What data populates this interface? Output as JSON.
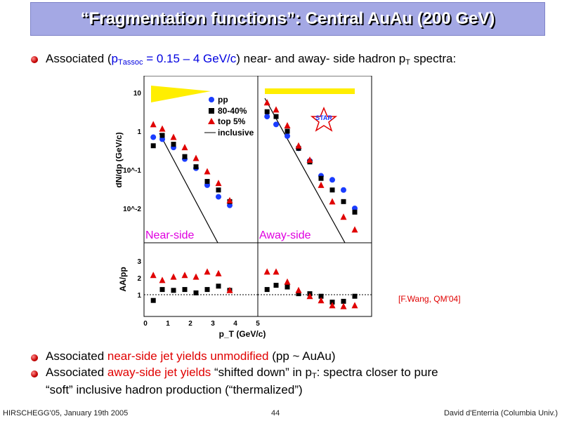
{
  "title": "“Fragmentation functions”: Central AuAu (200 GeV)",
  "bullets": {
    "b1": {
      "a": "Associated (",
      "b": "p",
      "c": "T",
      "d": "assoc",
      "e": " = 0.15 – 4 GeV/c",
      "f": ") near- and away- side hadron p",
      "g": "T",
      "h": " spectra:"
    },
    "b2": {
      "a": "Associated ",
      "b": "near-side jet yields unmodified",
      "c": " (pp ~ AuAu)"
    },
    "b3": {
      "a": "Associated ",
      "b": "away-side jet yields",
      "c": " “shifted down” in p",
      "d": "T",
      "e": ": spectra closer to pure",
      "f": "“soft” inclusive hadron production (“thermalized”)"
    }
  },
  "reference": "[F.Wang, QM'04]",
  "footer": {
    "left": "HIRSCHEGG'05, January 19th 2005",
    "center": "44",
    "right": "David d'Enterria (Columbia Univ.)"
  },
  "chart_data": {
    "type": "scatter",
    "ylabel_top": "dN/dp (GeV/c)",
    "ylabel_bottom": "AA/pp",
    "xlabel": "p_T (GeV/c)",
    "x_ticks": [
      "0",
      "1",
      "2",
      "3",
      "4",
      "5"
    ],
    "y_ticks_top": [
      "10",
      "1",
      "10^-1",
      "10^-2"
    ],
    "y_ticks_bottom": [
      "1",
      "2",
      "3"
    ],
    "legend": [
      "pp",
      "80-40%",
      "top 5%",
      "inclusive"
    ],
    "panel_labels": [
      "Near-side",
      "Away-side"
    ],
    "logo": "STAR",
    "colors": {
      "pp": "#1a3cff",
      "mid": "#000000",
      "top": "#e00000",
      "label": "#e000e0",
      "band": "#ffee00"
    },
    "near": {
      "pp": [
        [
          0.35,
          0.7
        ],
        [
          0.75,
          0.62
        ],
        [
          1.25,
          0.38
        ],
        [
          1.75,
          0.19
        ],
        [
          2.25,
          0.11
        ],
        [
          2.75,
          0.04
        ],
        [
          3.25,
          0.02
        ],
        [
          3.75,
          0.012
        ]
      ],
      "mid": [
        [
          0.35,
          0.42
        ],
        [
          0.75,
          0.78
        ],
        [
          1.25,
          0.46
        ],
        [
          1.75,
          0.22
        ],
        [
          2.25,
          0.12
        ],
        [
          2.75,
          0.05
        ],
        [
          3.25,
          0.03
        ],
        [
          3.75,
          0.015
        ]
      ],
      "top": [
        [
          0.35,
          1.5
        ],
        [
          0.75,
          1.15
        ],
        [
          1.25,
          0.7
        ],
        [
          1.75,
          0.38
        ],
        [
          2.25,
          0.2
        ],
        [
          2.75,
          0.09
        ],
        [
          3.25,
          0.045
        ],
        [
          3.75,
          0.016
        ]
      ]
    },
    "away": {
      "pp": [
        [
          0.35,
          2.4
        ],
        [
          0.75,
          1.5
        ],
        [
          1.25,
          0.75
        ],
        [
          1.75,
          0.36
        ],
        [
          2.25,
          0.17
        ],
        [
          2.75,
          0.07
        ],
        [
          3.25,
          0.055
        ],
        [
          3.75,
          0.03
        ],
        [
          4.25,
          0.01
        ]
      ],
      "mid": [
        [
          0.35,
          3.2
        ],
        [
          0.75,
          2.4
        ],
        [
          1.25,
          1.0
        ],
        [
          1.75,
          0.36
        ],
        [
          2.25,
          0.16
        ],
        [
          2.75,
          0.06
        ],
        [
          3.25,
          0.03
        ],
        [
          3.75,
          0.015
        ],
        [
          4.25,
          0.008
        ]
      ],
      "top": [
        [
          0.35,
          5.5
        ],
        [
          0.75,
          3.6
        ],
        [
          1.25,
          1.4
        ],
        [
          1.75,
          0.42
        ],
        [
          2.25,
          0.18
        ],
        [
          2.75,
          0.04
        ],
        [
          3.25,
          0.015
        ],
        [
          3.75,
          0.006
        ],
        [
          4.25,
          0.0028
        ]
      ]
    },
    "ratio_near": {
      "mid": [
        [
          0.35,
          0.6
        ],
        [
          0.75,
          1.25
        ],
        [
          1.25,
          1.2
        ],
        [
          1.75,
          1.25
        ],
        [
          2.25,
          1.05
        ],
        [
          2.75,
          1.25
        ],
        [
          3.25,
          1.45
        ],
        [
          3.75,
          1.2
        ]
      ],
      "top": [
        [
          0.35,
          2.1
        ],
        [
          0.75,
          1.8
        ],
        [
          1.25,
          2.0
        ],
        [
          1.75,
          2.1
        ],
        [
          2.25,
          2.0
        ],
        [
          2.75,
          2.3
        ],
        [
          3.25,
          2.2
        ],
        [
          3.75,
          1.2
        ]
      ]
    },
    "ratio_away": {
      "mid": [
        [
          0.35,
          1.25
        ],
        [
          0.75,
          1.5
        ],
        [
          1.25,
          1.4
        ],
        [
          1.75,
          1.0
        ],
        [
          2.25,
          1.0
        ],
        [
          2.75,
          0.85
        ],
        [
          3.25,
          0.5
        ],
        [
          3.75,
          0.55
        ],
        [
          4.25,
          0.85
        ]
      ],
      "top": [
        [
          0.35,
          2.3
        ],
        [
          0.75,
          2.3
        ],
        [
          1.25,
          1.7
        ],
        [
          1.75,
          1.2
        ],
        [
          2.25,
          0.85
        ],
        [
          2.75,
          0.6
        ],
        [
          3.25,
          0.3
        ],
        [
          3.75,
          0.25
        ],
        [
          4.25,
          0.3
        ]
      ]
    }
  }
}
